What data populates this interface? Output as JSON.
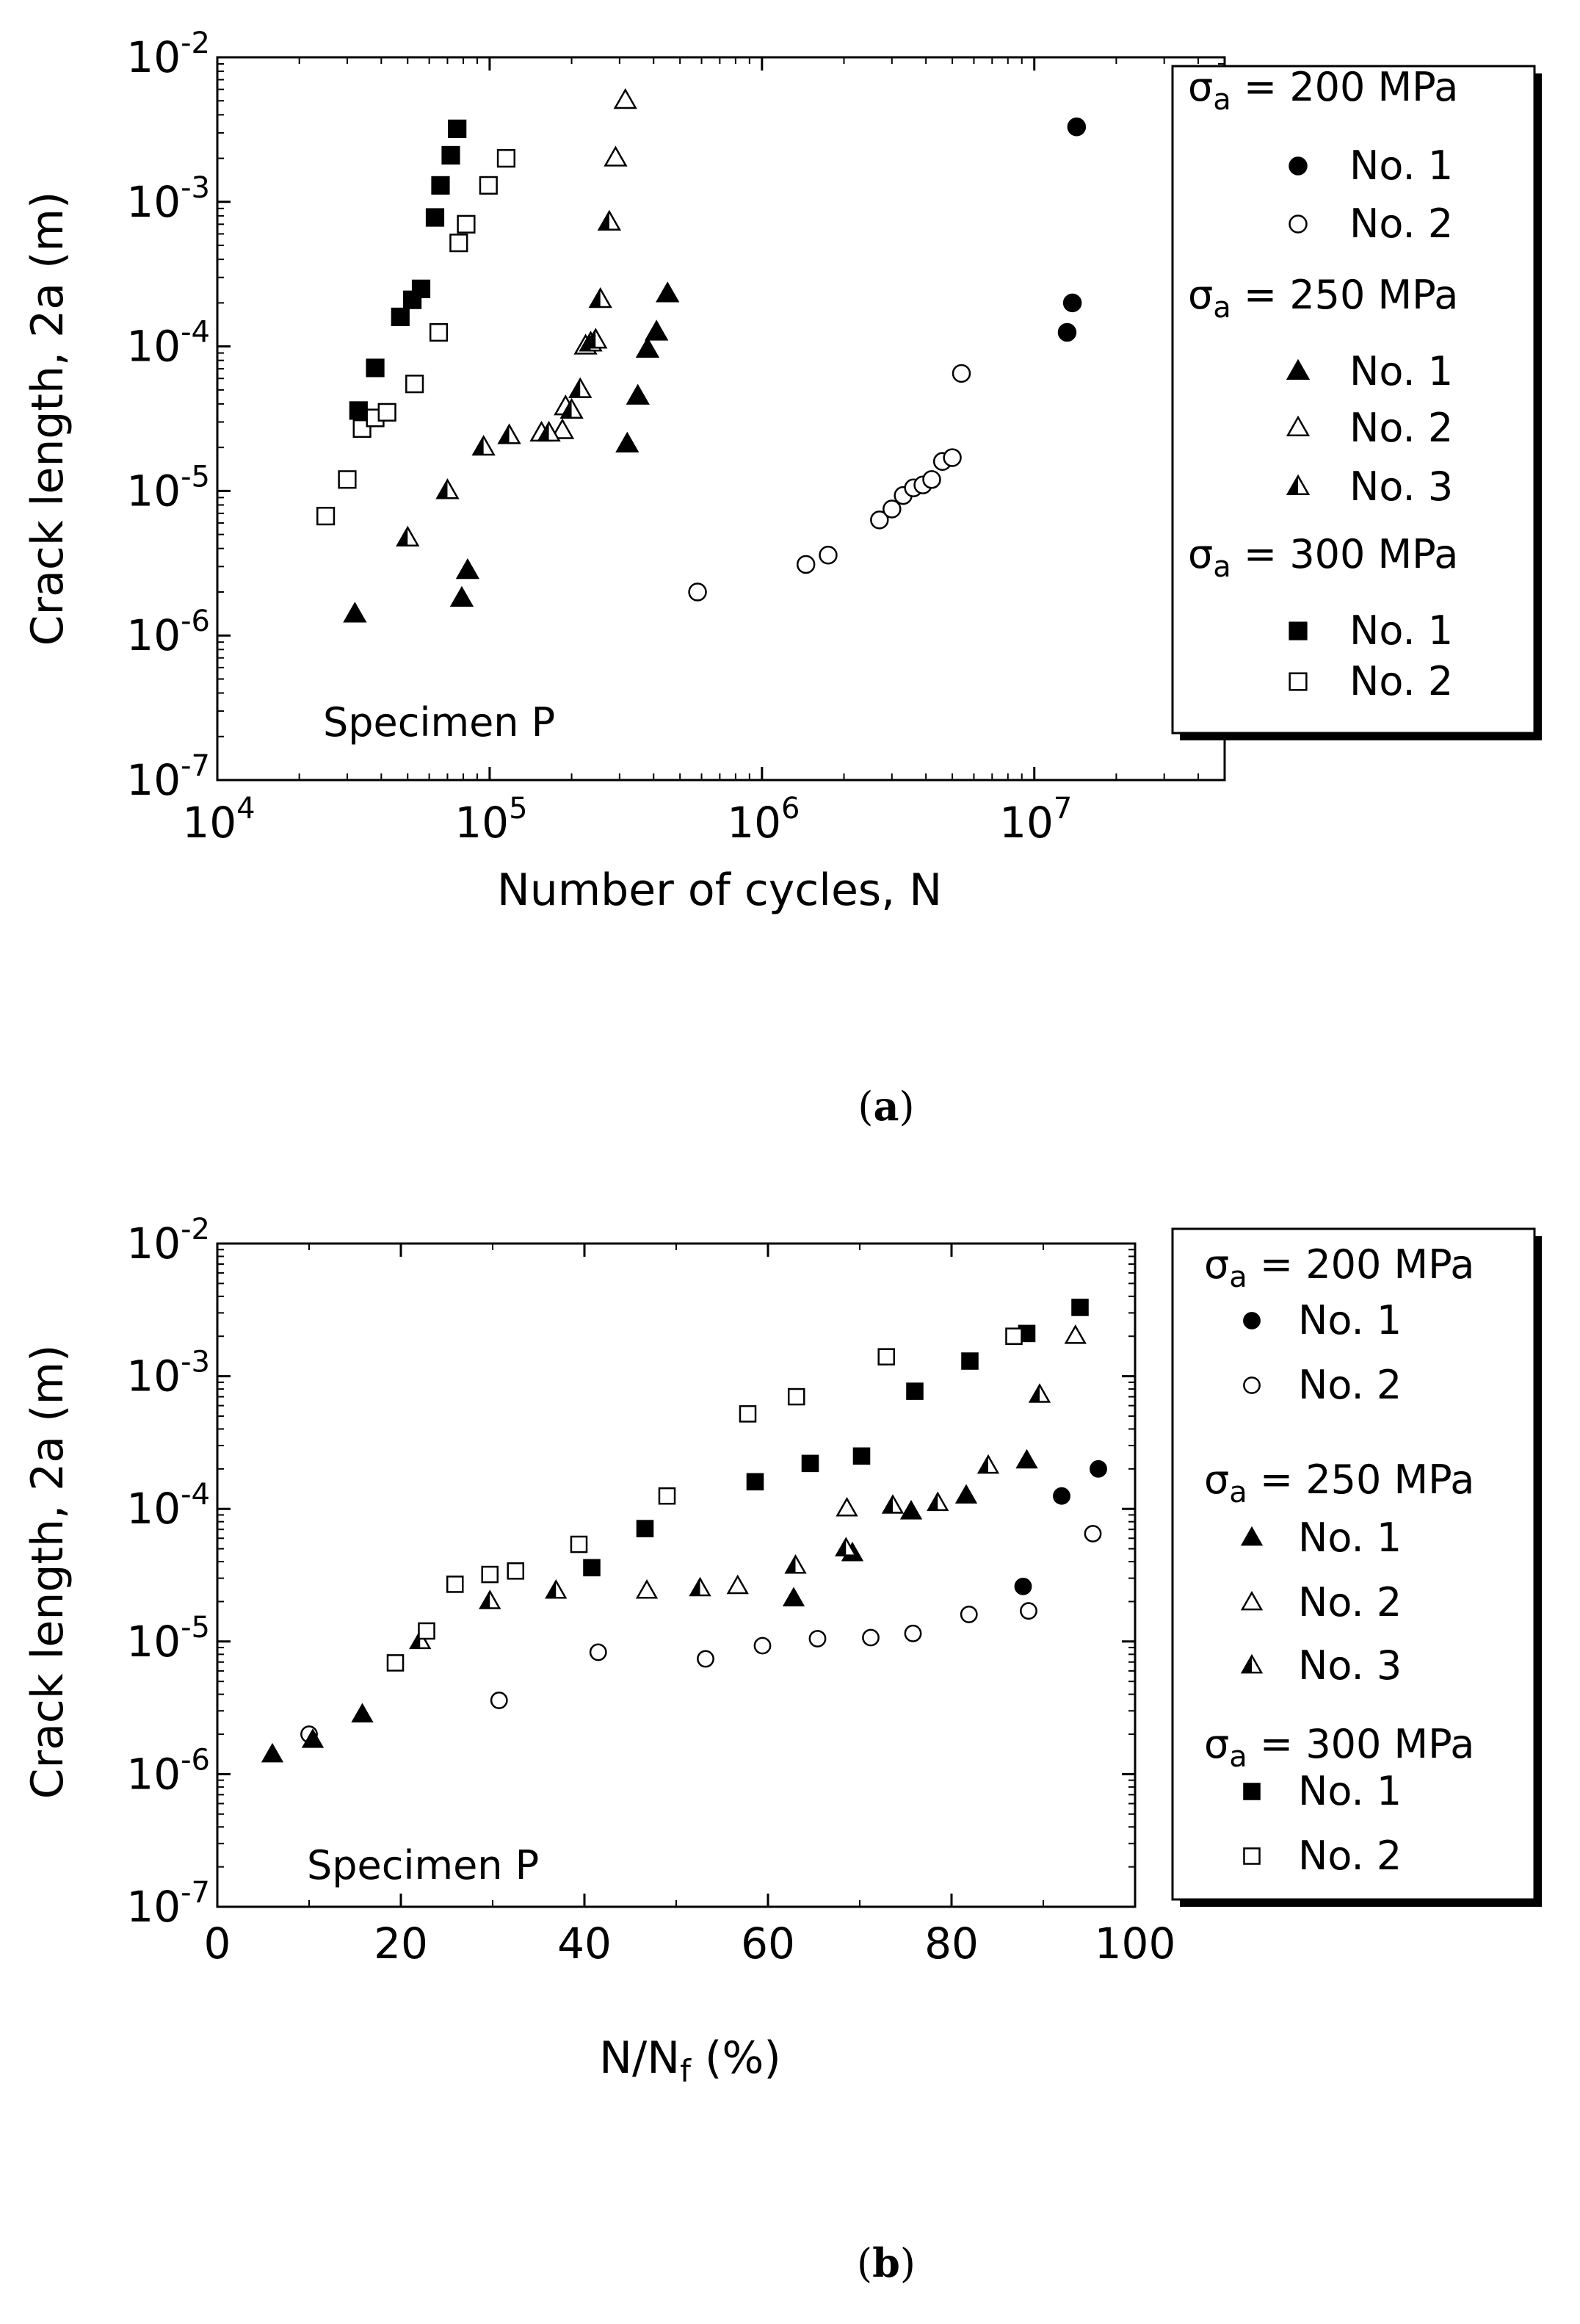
{
  "chart_data": [
    {
      "type": "scatter",
      "panel": "a",
      "panel_label_open": "(",
      "panel_label_letter": "a",
      "panel_label_close": ")",
      "xscale": "log",
      "yscale": "log",
      "xlim": [
        10000,
        50000000
      ],
      "ylim": [
        1e-07,
        0.01
      ],
      "xlabel": "Number of cycles, N",
      "ylabel": "Crack length, 2a (m)",
      "x_ticks": [
        {
          "value": 10000,
          "base": "10",
          "exp": "4"
        },
        {
          "value": 100000,
          "base": "10",
          "exp": "5"
        },
        {
          "value": 1000000,
          "base": "10",
          "exp": "6"
        },
        {
          "value": 10000000,
          "base": "10",
          "exp": "7"
        }
      ],
      "y_ticks": [
        {
          "value": 1e-07,
          "base": "10",
          "exp": "-7"
        },
        {
          "value": 1e-06,
          "base": "10",
          "exp": "-6"
        },
        {
          "value": 1e-05,
          "base": "10",
          "exp": "-5"
        },
        {
          "value": 0.0001,
          "base": "10",
          "exp": "-4"
        },
        {
          "value": 0.001,
          "base": "10",
          "exp": "-3"
        },
        {
          "value": 0.01,
          "base": "10",
          "exp": "-2"
        }
      ],
      "annotation": "Specimen P",
      "legend": [
        {
          "group": "σa = 200 MPa",
          "items": [
            {
              "label": "No. 1",
              "marker": "circle-filled"
            },
            {
              "label": "No. 2",
              "marker": "circle-open"
            }
          ]
        },
        {
          "group": "σa = 250 MPa",
          "items": [
            {
              "label": "No. 1",
              "marker": "triangle-filled"
            },
            {
              "label": "No. 2",
              "marker": "triangle-open"
            },
            {
              "label": "No. 3",
              "marker": "triangle-half"
            }
          ]
        },
        {
          "group": "σa = 300 MPa",
          "items": [
            {
              "label": "No. 1",
              "marker": "square-filled"
            },
            {
              "label": "No. 2",
              "marker": "square-open"
            }
          ]
        }
      ],
      "series": [
        {
          "name": "200 MPa No. 1",
          "marker": "circle-filled",
          "points": [
            [
              13200000,
              0.000125
            ],
            [
              13800000,
              0.0002
            ],
            [
              14300000,
              0.0033
            ]
          ]
        },
        {
          "name": "200 MPa No. 2",
          "marker": "circle-open",
          "points": [
            [
              580000,
              2e-06
            ],
            [
              1450000,
              3.1e-06
            ],
            [
              1750000,
              3.6e-06
            ],
            [
              2700000,
              6.3e-06
            ],
            [
              3000000,
              7.5e-06
            ],
            [
              3300000,
              9.3e-06
            ],
            [
              3600000,
              1.05e-05
            ],
            [
              3900000,
              1.1e-05
            ],
            [
              4200000,
              1.2e-05
            ],
            [
              4600000,
              1.6e-05
            ],
            [
              5000000,
              1.7e-05
            ],
            [
              5400000,
              6.5e-05
            ]
          ]
        },
        {
          "name": "250 MPa No. 1",
          "marker": "triangle-filled",
          "points": [
            [
              32000,
              1.4e-06
            ],
            [
              79000,
              1.8e-06
            ],
            [
              83000,
              2.8e-06
            ],
            [
              320000,
              2.1e-05
            ],
            [
              350000,
              4.5e-05
            ],
            [
              380000,
              9.5e-05
            ],
            [
              410000,
              0.000125
            ],
            [
              450000,
              0.00023
            ]
          ]
        },
        {
          "name": "250 MPa No. 2",
          "marker": "triangle-open",
          "points": [
            [
              155000,
              2.5e-05
            ],
            [
              185000,
              2.6e-05
            ],
            [
              190000,
              3.8e-05
            ],
            [
              225000,
              0.0001
            ],
            [
              290000,
              0.002
            ],
            [
              315000,
              0.005
            ]
          ]
        },
        {
          "name": "250 MPa No. 3",
          "marker": "triangle-half",
          "points": [
            [
              50000,
              4.7e-06
            ],
            [
              70000,
              1e-05
            ],
            [
              95000,
              2e-05
            ],
            [
              118000,
              2.4e-05
            ],
            [
              165000,
              2.5e-05
            ],
            [
              200000,
              3.6e-05
            ],
            [
              215000,
              5e-05
            ],
            [
              235000,
              0.000105
            ],
            [
              245000,
              0.00011
            ],
            [
              255000,
              0.00021
            ],
            [
              275000,
              0.00072
            ]
          ]
        },
        {
          "name": "300 MPa No. 1",
          "marker": "square-filled",
          "points": [
            [
              33000,
              3.6e-05
            ],
            [
              38000,
              7.1e-05
            ],
            [
              47000,
              0.00016
            ],
            [
              52000,
              0.00021
            ],
            [
              56000,
              0.00025
            ],
            [
              63000,
              0.00078
            ],
            [
              66000,
              0.0013
            ],
            [
              72000,
              0.0021
            ],
            [
              76000,
              0.0032
            ]
          ]
        },
        {
          "name": "300 MPa No. 2",
          "marker": "square-open",
          "points": [
            [
              25000,
              6.7e-06
            ],
            [
              30000,
              1.2e-05
            ],
            [
              34000,
              2.7e-05
            ],
            [
              38000,
              3.2e-05
            ],
            [
              42000,
              3.5e-05
            ],
            [
              53000,
              5.5e-05
            ],
            [
              65000,
              0.000125
            ],
            [
              77000,
              0.00052
            ],
            [
              82000,
              0.0007
            ],
            [
              99000,
              0.0013
            ],
            [
              115000,
              0.002
            ]
          ]
        }
      ]
    },
    {
      "type": "scatter",
      "panel": "b",
      "panel_label_open": "(",
      "panel_label_letter": "b",
      "panel_label_close": ")",
      "xscale": "linear",
      "yscale": "log",
      "xlim": [
        0,
        100
      ],
      "ylim": [
        1e-07,
        0.01
      ],
      "xlabel": "N/Nf (%)",
      "xlabel_main": "N/N",
      "xlabel_sub": "f",
      "xlabel_tail": " (%)",
      "ylabel": "Crack length, 2a (m)",
      "x_ticks": [
        0,
        20,
        40,
        60,
        80,
        100
      ],
      "y_ticks": [
        {
          "value": 1e-07,
          "base": "10",
          "exp": "-7"
        },
        {
          "value": 1e-06,
          "base": "10",
          "exp": "-6"
        },
        {
          "value": 1e-05,
          "base": "10",
          "exp": "-5"
        },
        {
          "value": 0.0001,
          "base": "10",
          "exp": "-4"
        },
        {
          "value": 0.001,
          "base": "10",
          "exp": "-3"
        },
        {
          "value": 0.01,
          "base": "10",
          "exp": "-2"
        }
      ],
      "annotation": "Specimen P",
      "legend": [
        {
          "group": "σa = 200 MPa",
          "items": [
            {
              "label": "No. 1",
              "marker": "circle-filled"
            },
            {
              "label": "No. 2",
              "marker": "circle-open"
            }
          ]
        },
        {
          "group": "σa = 250 MPa",
          "items": [
            {
              "label": "No. 1",
              "marker": "triangle-filled"
            },
            {
              "label": "No. 2",
              "marker": "triangle-open"
            },
            {
              "label": "No. 3",
              "marker": "triangle-half"
            }
          ]
        },
        {
          "group": "σa = 300 MPa",
          "items": [
            {
              "label": "No. 1",
              "marker": "square-filled"
            },
            {
              "label": "No. 2",
              "marker": "square-open"
            }
          ]
        }
      ],
      "series": [
        {
          "name": "200 MPa No. 1",
          "marker": "circle-filled",
          "points": [
            [
              87.8,
              2.6e-05
            ],
            [
              92.0,
              0.000125
            ],
            [
              96.0,
              0.0002
            ]
          ]
        },
        {
          "name": "200 MPa No. 2",
          "marker": "circle-open",
          "points": [
            [
              10.0,
              2e-06
            ],
            [
              30.7,
              3.6e-06
            ],
            [
              41.5,
              8.3e-06
            ],
            [
              53.2,
              7.4e-06
            ],
            [
              59.4,
              9.3e-06
            ],
            [
              65.4,
              1.05e-05
            ],
            [
              71.2,
              1.07e-05
            ],
            [
              75.8,
              1.15e-05
            ],
            [
              81.9,
              1.6e-05
            ],
            [
              88.4,
              1.7e-05
            ],
            [
              95.4,
              6.5e-05
            ]
          ]
        },
        {
          "name": "250 MPa No. 1",
          "marker": "triangle-filled",
          "points": [
            [
              6.0,
              1.4e-06
            ],
            [
              10.4,
              1.8e-06
            ],
            [
              15.8,
              2.8e-06
            ],
            [
              62.8,
              2.1e-05
            ],
            [
              69.2,
              4.6e-05
            ],
            [
              75.6,
              9.5e-05
            ],
            [
              81.6,
              0.000125
            ],
            [
              88.2,
              0.00023
            ]
          ]
        },
        {
          "name": "250 MPa No. 2",
          "marker": "triangle-open",
          "points": [
            [
              46.8,
              2.4e-05
            ],
            [
              56.7,
              2.6e-05
            ],
            [
              68.6,
              0.0001
            ],
            [
              93.5,
              0.002
            ]
          ]
        },
        {
          "name": "250 MPa No. 3",
          "marker": "triangle-half",
          "points": [
            [
              22.1,
              1e-05
            ],
            [
              29.7,
              2e-05
            ],
            [
              36.9,
              2.4e-05
            ],
            [
              52.6,
              2.5e-05
            ],
            [
              63.0,
              3.7e-05
            ],
            [
              68.5,
              5e-05
            ],
            [
              73.6,
              0.000105
            ],
            [
              78.5,
              0.00011
            ],
            [
              84.0,
              0.00021
            ],
            [
              89.6,
              0.00072
            ]
          ]
        },
        {
          "name": "300 MPa No. 1",
          "marker": "square-filled",
          "points": [
            [
              40.8,
              3.6e-05
            ],
            [
              46.6,
              7.1e-05
            ],
            [
              58.6,
              0.00016
            ],
            [
              64.6,
              0.00022
            ],
            [
              70.2,
              0.00025
            ],
            [
              76.0,
              0.00077
            ],
            [
              82.0,
              0.0013
            ],
            [
              88.2,
              0.0021
            ],
            [
              94.0,
              0.0033
            ]
          ]
        },
        {
          "name": "300 MPa No. 2",
          "marker": "square-open",
          "points": [
            [
              19.4,
              6.9e-06
            ],
            [
              22.8,
              1.2e-05
            ],
            [
              25.9,
              2.7e-05
            ],
            [
              29.7,
              3.2e-05
            ],
            [
              32.5,
              3.4e-05
            ],
            [
              39.4,
              5.4e-05
            ],
            [
              49.0,
              0.000125
            ],
            [
              57.8,
              0.00052
            ],
            [
              63.1,
              0.0007
            ],
            [
              72.9,
              0.0014
            ],
            [
              86.8,
              0.002
            ]
          ]
        }
      ]
    }
  ]
}
